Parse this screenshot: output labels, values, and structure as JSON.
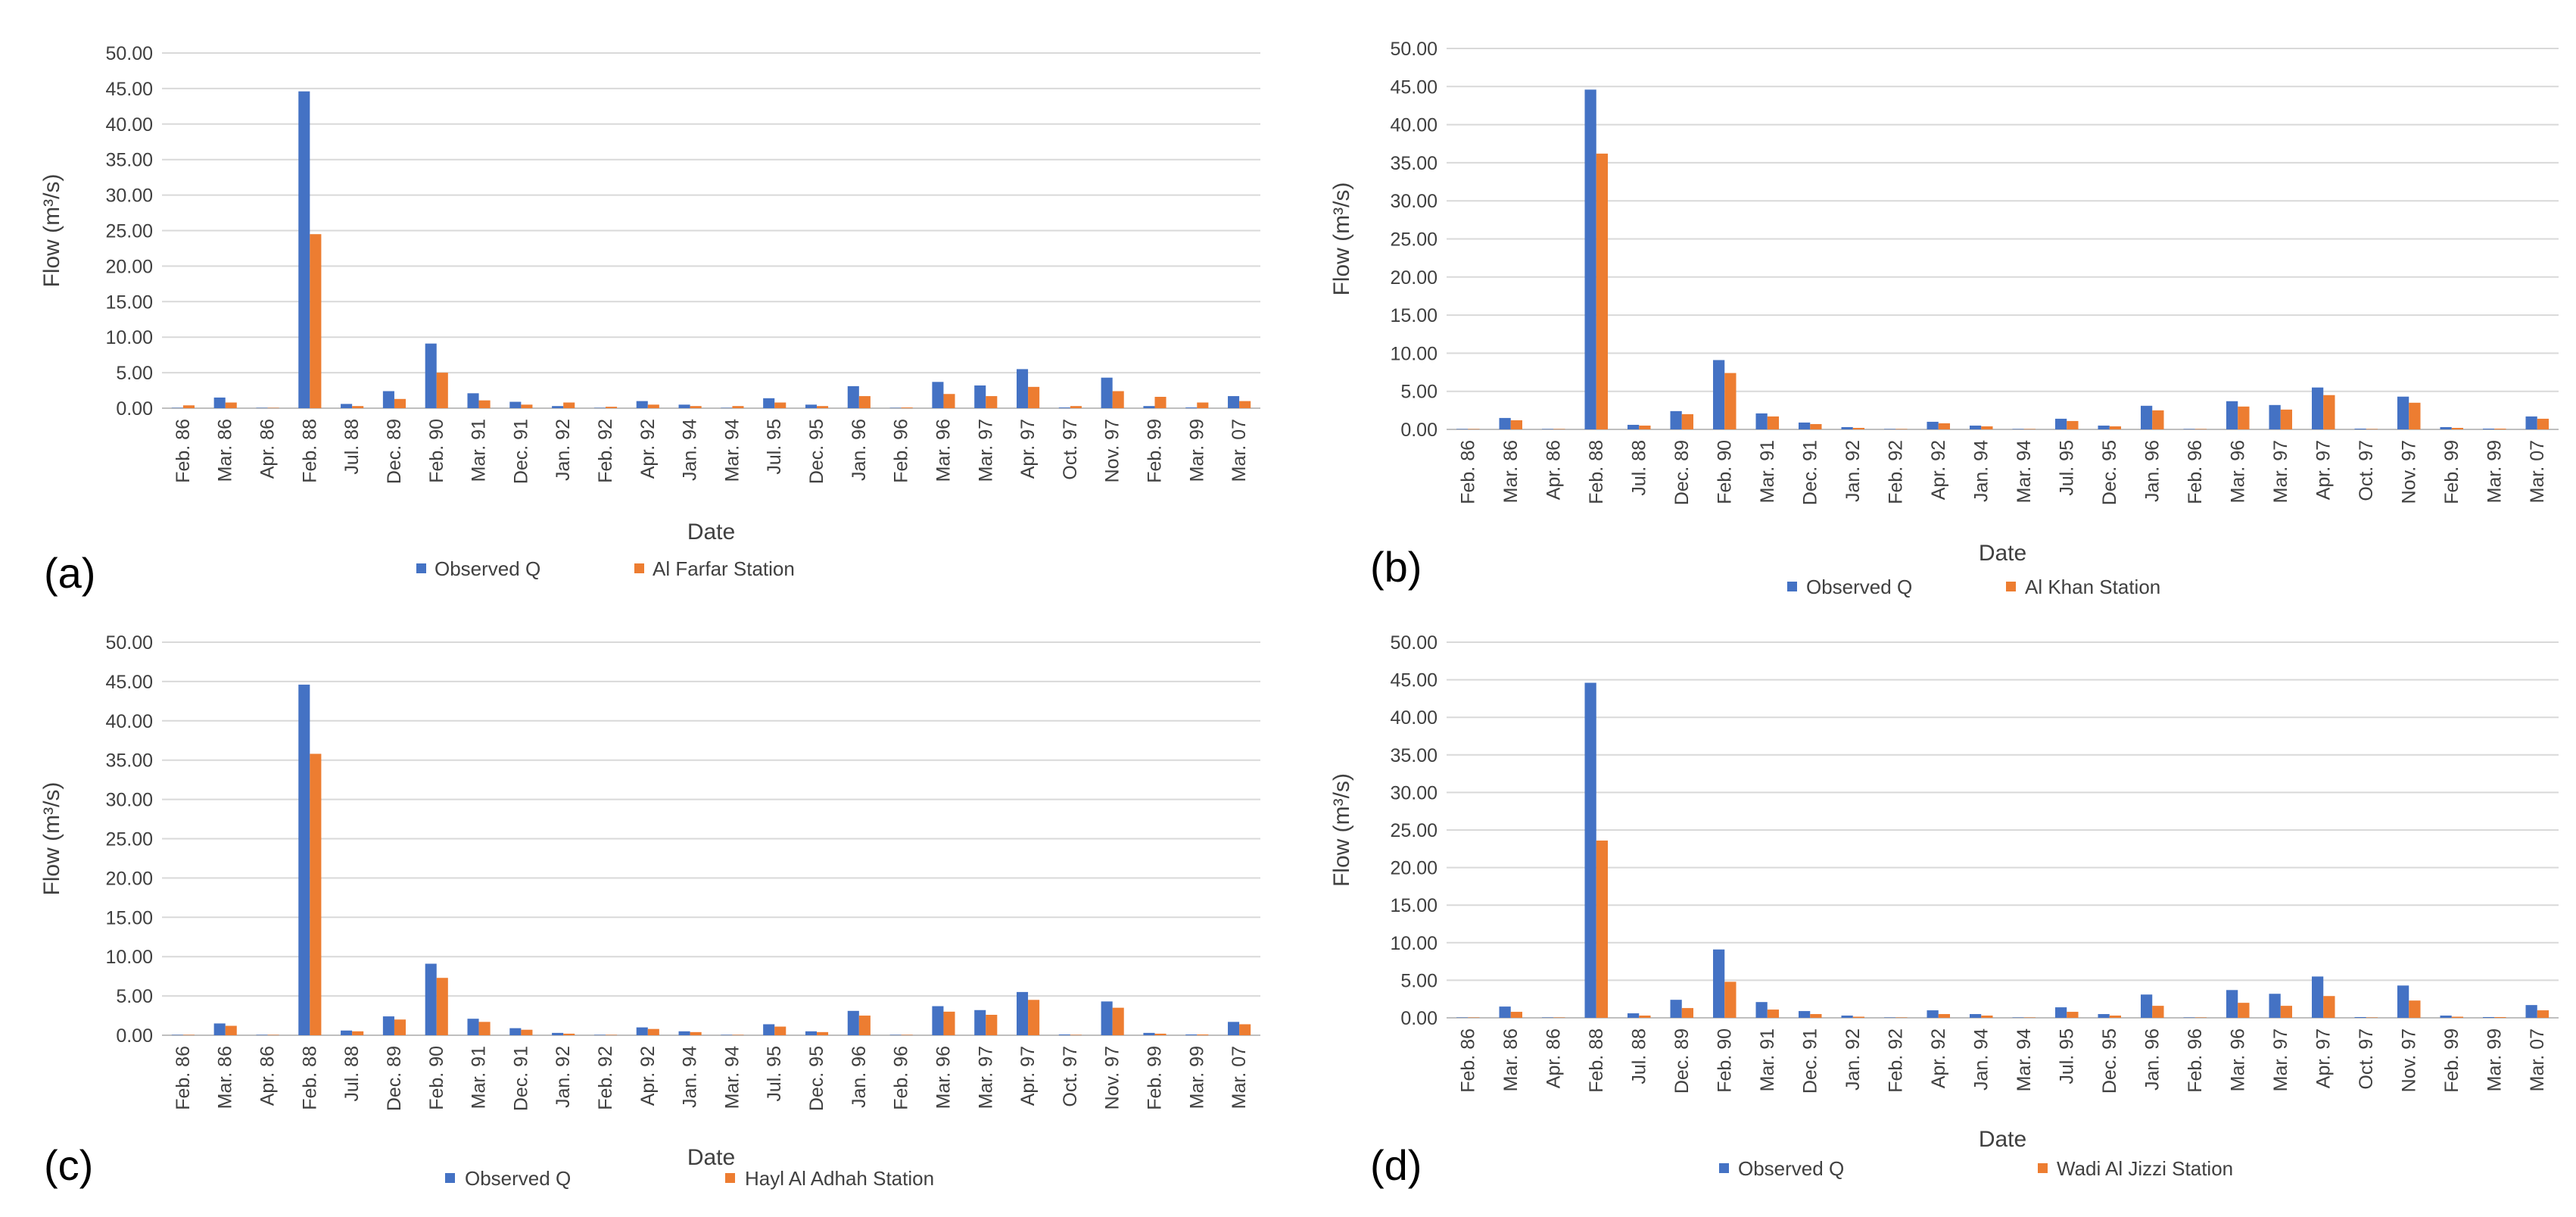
{
  "colors": {
    "observed": "#4472C4",
    "simulated": "#ED7D31",
    "grid": "#D9D9D9",
    "text": "#404040"
  },
  "chart_data": [
    {
      "panel": "(a)",
      "type": "bar",
      "xlabel": "Date",
      "ylabel": "Flow (m³/s)",
      "ylim": [
        0,
        50
      ],
      "yticks": [
        "0.00",
        "5.00",
        "10.00",
        "15.00",
        "20.00",
        "25.00",
        "30.00",
        "35.00",
        "40.00",
        "45.00",
        "50.00"
      ],
      "categories": [
        "Feb. 86",
        "Mar. 86",
        "Apr. 86",
        "Feb. 88",
        "Jul. 88",
        "Dec. 89",
        "Feb. 90",
        "Mar. 91",
        "Dec. 91",
        "Jan. 92",
        "Feb. 92",
        "Apr. 92",
        "Jan. 94",
        "Mar. 94",
        "Jul. 95",
        "Dec. 95",
        "Jan. 96",
        "Feb. 96",
        "Mar. 96",
        "Mar. 97",
        "Apr. 97",
        "Oct. 97",
        "Nov. 97",
        "Feb. 99",
        "Mar. 99",
        "Mar. 07"
      ],
      "series": [
        {
          "name": "Observed Q",
          "values": [
            0.05,
            1.5,
            0.05,
            44.6,
            0.6,
            2.4,
            9.1,
            2.1,
            0.9,
            0.3,
            0.05,
            1.0,
            0.5,
            0.05,
            1.4,
            0.5,
            3.1,
            0.05,
            3.7,
            3.2,
            5.5,
            0.1,
            4.3,
            0.3,
            0.1,
            1.7
          ]
        },
        {
          "name": "Al Farfar Station",
          "values": [
            0.4,
            0.8,
            0.05,
            24.5,
            0.3,
            1.3,
            5.0,
            1.1,
            0.5,
            0.8,
            0.2,
            0.5,
            0.3,
            0.3,
            0.8,
            0.3,
            1.7,
            0.1,
            2.0,
            1.7,
            3.0,
            0.3,
            2.4,
            1.6,
            0.8,
            1.0
          ]
        }
      ]
    },
    {
      "panel": "(b)",
      "type": "bar",
      "xlabel": "Date",
      "ylabel": "Flow (m³/s)",
      "ylim": [
        0,
        50
      ],
      "yticks": [
        "0.00",
        "5.00",
        "10.00",
        "15.00",
        "20.00",
        "25.00",
        "30.00",
        "35.00",
        "40.00",
        "45.00",
        "50.00"
      ],
      "categories": [
        "Feb. 86",
        "Mar. 86",
        "Apr. 86",
        "Feb. 88",
        "Jul. 88",
        "Dec. 89",
        "Feb. 90",
        "Mar. 91",
        "Dec. 91",
        "Jan. 92",
        "Feb. 92",
        "Apr. 92",
        "Jan. 94",
        "Mar. 94",
        "Jul. 95",
        "Dec. 95",
        "Jan. 96",
        "Feb. 96",
        "Mar. 96",
        "Mar. 97",
        "Apr. 97",
        "Oct. 97",
        "Nov. 97",
        "Feb. 99",
        "Mar. 99",
        "Mar. 07"
      ],
      "series": [
        {
          "name": "Observed Q",
          "values": [
            0.05,
            1.5,
            0.05,
            44.6,
            0.6,
            2.4,
            9.1,
            2.1,
            0.9,
            0.3,
            0.05,
            1.0,
            0.5,
            0.05,
            1.4,
            0.5,
            3.1,
            0.05,
            3.7,
            3.2,
            5.5,
            0.1,
            4.3,
            0.3,
            0.1,
            1.7
          ]
        },
        {
          "name": "Al Khan Station",
          "values": [
            0.05,
            1.2,
            0.05,
            36.2,
            0.5,
            2.0,
            7.4,
            1.7,
            0.7,
            0.2,
            0.05,
            0.8,
            0.4,
            0.05,
            1.1,
            0.4,
            2.5,
            0.05,
            3.0,
            2.6,
            4.5,
            0.05,
            3.5,
            0.2,
            0.1,
            1.4
          ]
        }
      ]
    },
    {
      "panel": "(c)",
      "type": "bar",
      "xlabel": "Date",
      "ylabel": "Flow (m³/s)",
      "ylim": [
        0,
        50
      ],
      "yticks": [
        "0.00",
        "5.00",
        "10.00",
        "15.00",
        "20.00",
        "25.00",
        "30.00",
        "35.00",
        "40.00",
        "45.00",
        "50.00"
      ],
      "categories": [
        "Feb. 86",
        "Mar. 86",
        "Apr. 86",
        "Feb. 88",
        "Jul. 88",
        "Dec. 89",
        "Feb. 90",
        "Mar. 91",
        "Dec. 91",
        "Jan. 92",
        "Feb. 92",
        "Apr. 92",
        "Jan. 94",
        "Mar. 94",
        "Jul. 95",
        "Dec. 95",
        "Jan. 96",
        "Feb. 96",
        "Mar. 96",
        "Mar. 97",
        "Apr. 97",
        "Oct. 97",
        "Nov. 97",
        "Feb. 99",
        "Mar. 99",
        "Mar. 07"
      ],
      "series": [
        {
          "name": "Observed Q",
          "values": [
            0.05,
            1.5,
            0.05,
            44.6,
            0.6,
            2.4,
            9.1,
            2.1,
            0.9,
            0.3,
            0.05,
            1.0,
            0.5,
            0.05,
            1.4,
            0.5,
            3.1,
            0.05,
            3.7,
            3.2,
            5.5,
            0.1,
            4.3,
            0.3,
            0.1,
            1.7
          ]
        },
        {
          "name": "Hayl Al Adhah Station",
          "values": [
            0.05,
            1.2,
            0.05,
            35.8,
            0.5,
            2.0,
            7.3,
            1.7,
            0.7,
            0.2,
            0.05,
            0.8,
            0.4,
            0.05,
            1.1,
            0.4,
            2.5,
            0.05,
            3.0,
            2.6,
            4.5,
            0.05,
            3.5,
            0.2,
            0.1,
            1.4
          ]
        }
      ]
    },
    {
      "panel": "(d)",
      "type": "bar",
      "xlabel": "Date",
      "ylabel": "Flow (m³/s)",
      "ylim": [
        0,
        50
      ],
      "yticks": [
        "0.00",
        "5.00",
        "10.00",
        "15.00",
        "20.00",
        "25.00",
        "30.00",
        "35.00",
        "40.00",
        "45.00",
        "50.00"
      ],
      "categories": [
        "Feb. 86",
        "Mar. 86",
        "Apr. 86",
        "Feb. 88",
        "Jul. 88",
        "Dec. 89",
        "Feb. 90",
        "Mar. 91",
        "Dec. 91",
        "Jan. 92",
        "Feb. 92",
        "Apr. 92",
        "Jan. 94",
        "Mar. 94",
        "Jul. 95",
        "Dec. 95",
        "Jan. 96",
        "Feb. 96",
        "Mar. 96",
        "Mar. 97",
        "Apr. 97",
        "Oct. 97",
        "Nov. 97",
        "Feb. 99",
        "Mar. 99",
        "Mar. 07"
      ],
      "series": [
        {
          "name": "Observed Q",
          "values": [
            0.05,
            1.5,
            0.05,
            44.6,
            0.6,
            2.4,
            9.1,
            2.1,
            0.9,
            0.3,
            0.05,
            1.0,
            0.5,
            0.05,
            1.4,
            0.5,
            3.1,
            0.05,
            3.7,
            3.2,
            5.5,
            0.1,
            4.3,
            0.3,
            0.1,
            1.7
          ]
        },
        {
          "name": "Wadi Al Jizzi Station",
          "values": [
            0.05,
            0.8,
            0.05,
            23.6,
            0.3,
            1.3,
            4.8,
            1.1,
            0.5,
            0.15,
            0.05,
            0.5,
            0.3,
            0.05,
            0.8,
            0.3,
            1.6,
            0.05,
            2.0,
            1.6,
            2.9,
            0.05,
            2.3,
            0.15,
            0.1,
            1.0
          ]
        }
      ]
    }
  ]
}
